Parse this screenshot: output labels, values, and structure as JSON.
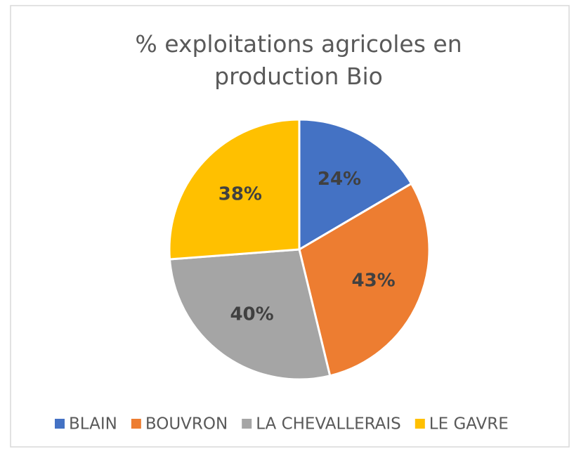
{
  "chart_data": {
    "type": "pie",
    "title": "% exploitations agricoles en production Bio",
    "categories": [
      "BLAIN",
      "BOUVRON",
      "LA CHEVALLERAIS",
      "LE GAVRE"
    ],
    "values": [
      24,
      43,
      40,
      38
    ],
    "value_labels": [
      "24%",
      "43%",
      "40%",
      "38%"
    ],
    "colors": [
      "#4472c4",
      "#ed7d31",
      "#a5a5a5",
      "#ffc000"
    ],
    "legend": "bottom"
  }
}
